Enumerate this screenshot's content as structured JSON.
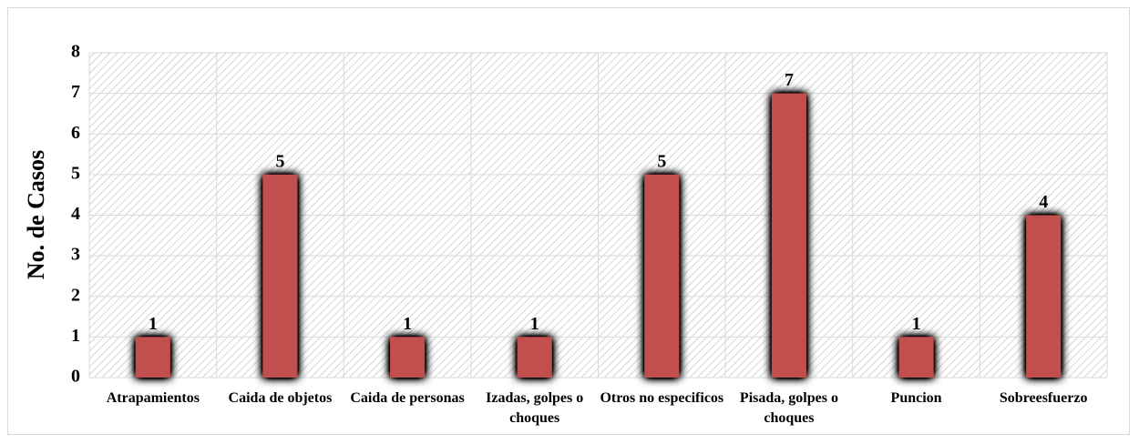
{
  "chart_data": {
    "type": "bar",
    "y_label": "No. de Casos",
    "categories": [
      "Atrapamientos",
      "Caida de objetos",
      "Caida de personas",
      "Izadas, golpes o choques",
      "Otros no especificos",
      "Pisada, golpes o choques",
      "Puncion",
      "Sobreesfuerzo"
    ],
    "values": [
      1,
      5,
      1,
      1,
      5,
      7,
      1,
      4
    ],
    "color": "#c0504d",
    "ylim": [
      0,
      8
    ],
    "yticks": [
      0,
      1,
      2,
      3,
      4,
      5,
      6,
      7,
      8
    ],
    "grid": true
  }
}
